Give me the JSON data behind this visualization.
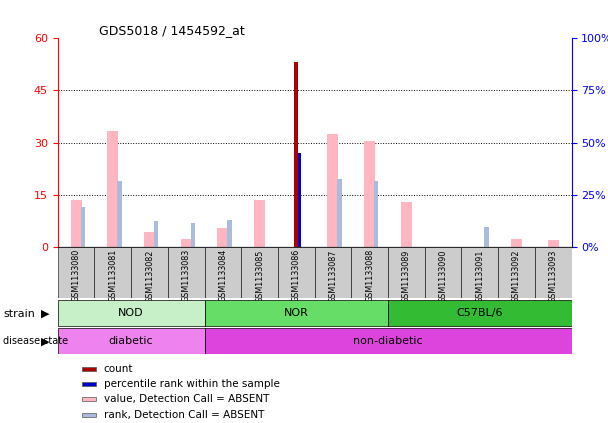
{
  "title": "GDS5018 / 1454592_at",
  "samples": [
    "GSM1133080",
    "GSM1133081",
    "GSM1133082",
    "GSM1133083",
    "GSM1133084",
    "GSM1133085",
    "GSM1133086",
    "GSM1133087",
    "GSM1133088",
    "GSM1133089",
    "GSM1133090",
    "GSM1133091",
    "GSM1133092",
    "GSM1133093"
  ],
  "value_absent": [
    13.5,
    33.5,
    4.5,
    2.5,
    5.5,
    13.5,
    0,
    32.5,
    30.5,
    13.0,
    0,
    0,
    2.5,
    2.0
  ],
  "rank_absent": [
    11.5,
    19.0,
    7.5,
    7.0,
    8.0,
    0,
    0,
    19.5,
    19.0,
    0,
    0,
    6.0,
    0,
    0
  ],
  "count": [
    0,
    0,
    0,
    0,
    0,
    0,
    53.0,
    0,
    0,
    0,
    0,
    0,
    0,
    0
  ],
  "percentile_rank": [
    0,
    0,
    0,
    0,
    0,
    0,
    27.0,
    0,
    0,
    0,
    0,
    0,
    0,
    0
  ],
  "ylim_left": [
    0,
    60
  ],
  "ylim_right": [
    0,
    100
  ],
  "yticks_left": [
    0,
    15,
    30,
    45,
    60
  ],
  "ytick_labels_right": [
    "0%",
    "25%",
    "50%",
    "75%",
    "100%"
  ],
  "strain_groups": [
    {
      "label": "NOD",
      "start": 0,
      "end": 3,
      "color": "#C8F0C8"
    },
    {
      "label": "NOR",
      "start": 4,
      "end": 8,
      "color": "#66DD66"
    },
    {
      "label": "C57BL/6",
      "start": 9,
      "end": 13,
      "color": "#33BB33"
    }
  ],
  "disease_groups": [
    {
      "label": "diabetic",
      "start": 0,
      "end": 3,
      "color": "#EE82EE"
    },
    {
      "label": "non-diabetic",
      "start": 4,
      "end": 13,
      "color": "#DD44DD"
    }
  ],
  "color_value_absent": "#FFB6C1",
  "color_rank_absent": "#AABBDD",
  "color_count": "#AA0000",
  "color_percentile": "#0000CC",
  "plot_bg": "#FFFFFF",
  "tick_area_bg": "#DDDDDD",
  "legend_items": [
    {
      "color": "#AA0000",
      "label": "count"
    },
    {
      "color": "#0000CC",
      "label": "percentile rank within the sample"
    },
    {
      "color": "#FFB6C1",
      "label": "value, Detection Call = ABSENT"
    },
    {
      "color": "#AABBDD",
      "label": "rank, Detection Call = ABSENT"
    }
  ]
}
